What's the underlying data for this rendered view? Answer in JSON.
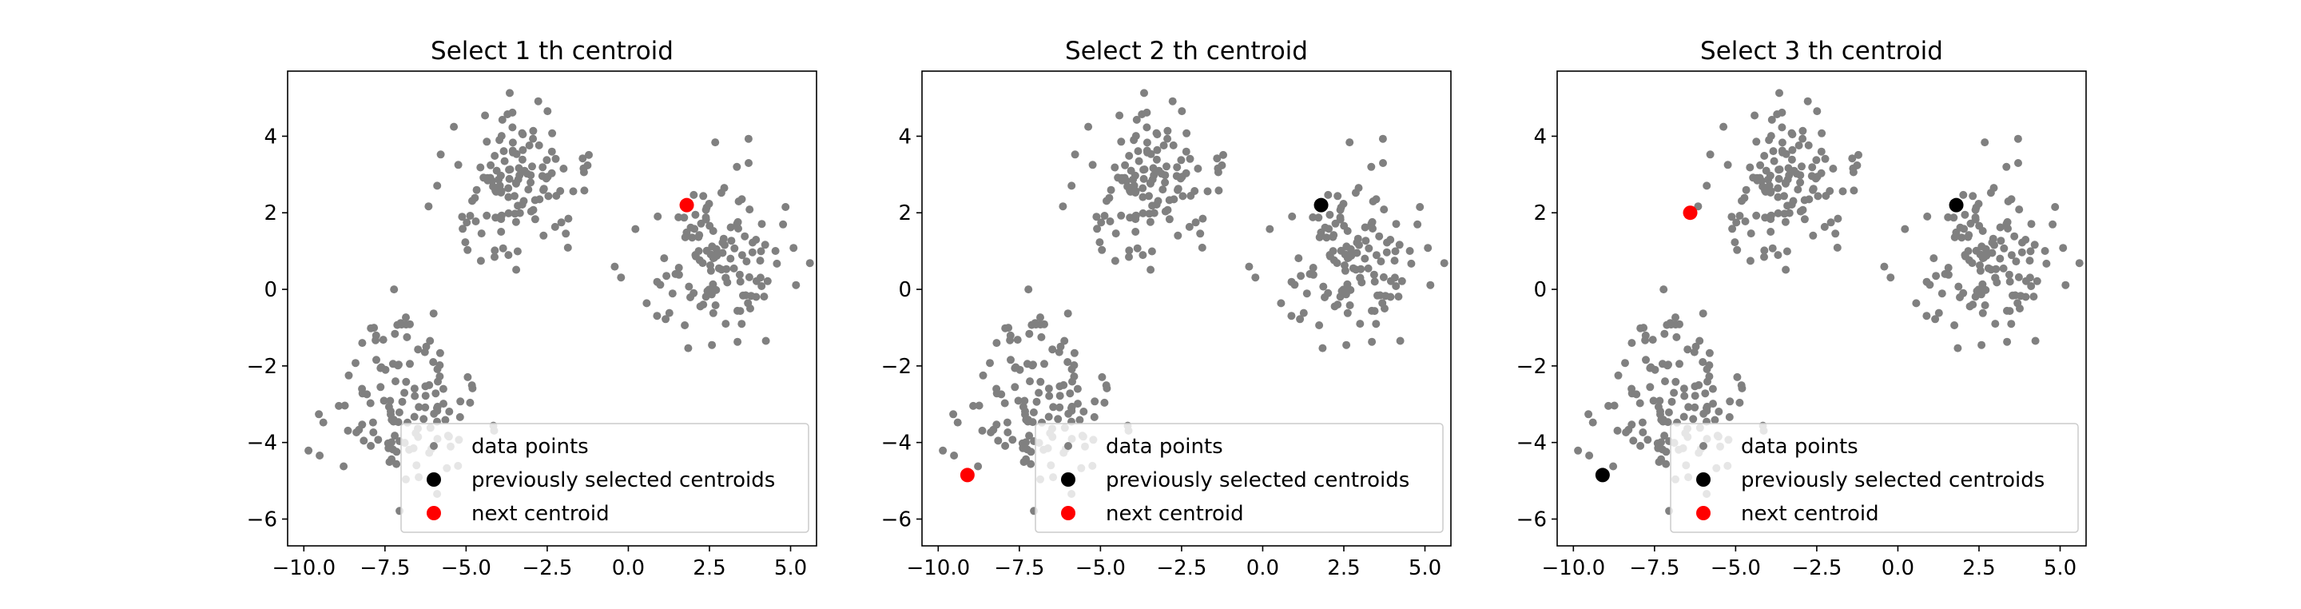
{
  "chart_data": [
    {
      "type": "scatter",
      "title": "Select  1 th centroid",
      "xlabel": "",
      "ylabel": "",
      "xlim": [
        -10.5,
        5.8
      ],
      "ylim": [
        -6.7,
        5.7
      ],
      "xticks": [
        -10.0,
        -7.5,
        -5.0,
        -2.5,
        0.0,
        2.5,
        5.0
      ],
      "yticks": [
        -6,
        -4,
        -2,
        0,
        2,
        4
      ],
      "xtick_labels": [
        "−10.0",
        "−7.5",
        "−5.0",
        "−2.5",
        "0.0",
        "2.5",
        "5.0"
      ],
      "ytick_labels": [
        "−6",
        "−4",
        "−2",
        "0",
        "2",
        "4"
      ],
      "grid": false,
      "legend": {
        "position": "lower right",
        "entries": [
          {
            "label": "data points",
            "color": "#808080"
          },
          {
            "label": "previously selected centroids",
            "color": "#000000"
          },
          {
            "label": "next centroid",
            "color": "#ff0000"
          }
        ]
      },
      "clusters": [
        {
          "center": [
            -3.6,
            2.6
          ],
          "spread": [
            1.1,
            1.05
          ],
          "count": 130
        },
        {
          "center": [
            -7.0,
            -3.0
          ],
          "spread": [
            1.1,
            1.1
          ],
          "count": 130
        },
        {
          "center": [
            2.8,
            0.9
          ],
          "spread": [
            1.05,
            1.0
          ],
          "count": 130
        }
      ],
      "previous_centroids": [],
      "next_centroid": [
        1.8,
        2.2
      ]
    },
    {
      "type": "scatter",
      "title": "Select  2 th centroid",
      "xlabel": "",
      "ylabel": "",
      "xlim": [
        -10.5,
        5.8
      ],
      "ylim": [
        -6.7,
        5.7
      ],
      "xticks": [
        -10.0,
        -7.5,
        -5.0,
        -2.5,
        0.0,
        2.5,
        5.0
      ],
      "yticks": [
        -6,
        -4,
        -2,
        0,
        2,
        4
      ],
      "xtick_labels": [
        "−10.0",
        "−7.5",
        "−5.0",
        "−2.5",
        "0.0",
        "2.5",
        "5.0"
      ],
      "ytick_labels": [
        "−6",
        "−4",
        "−2",
        "0",
        "2",
        "4"
      ],
      "grid": false,
      "legend": {
        "position": "lower right",
        "entries": [
          {
            "label": "data points",
            "color": "#808080"
          },
          {
            "label": "previously selected centroids",
            "color": "#000000"
          },
          {
            "label": "next centroid",
            "color": "#ff0000"
          }
        ]
      },
      "clusters": [
        {
          "center": [
            -3.6,
            2.6
          ],
          "spread": [
            1.1,
            1.05
          ],
          "count": 130
        },
        {
          "center": [
            -7.0,
            -3.0
          ],
          "spread": [
            1.1,
            1.1
          ],
          "count": 130
        },
        {
          "center": [
            2.8,
            0.9
          ],
          "spread": [
            1.05,
            1.0
          ],
          "count": 130
        }
      ],
      "previous_centroids": [
        [
          1.8,
          2.2
        ]
      ],
      "next_centroid": [
        -9.1,
        -4.85
      ]
    },
    {
      "type": "scatter",
      "title": "Select  3 th centroid",
      "xlabel": "",
      "ylabel": "",
      "xlim": [
        -10.5,
        5.8
      ],
      "ylim": [
        -6.7,
        5.7
      ],
      "xticks": [
        -10.0,
        -7.5,
        -5.0,
        -2.5,
        0.0,
        2.5,
        5.0
      ],
      "yticks": [
        -6,
        -4,
        -2,
        0,
        2,
        4
      ],
      "xtick_labels": [
        "−10.0",
        "−7.5",
        "−5.0",
        "−2.5",
        "0.0",
        "2.5",
        "5.0"
      ],
      "ytick_labels": [
        "−6",
        "−4",
        "−2",
        "0",
        "2",
        "4"
      ],
      "grid": false,
      "legend": {
        "position": "lower right",
        "entries": [
          {
            "label": "data points",
            "color": "#808080"
          },
          {
            "label": "previously selected centroids",
            "color": "#000000"
          },
          {
            "label": "next centroid",
            "color": "#ff0000"
          }
        ]
      },
      "clusters": [
        {
          "center": [
            -3.6,
            2.6
          ],
          "spread": [
            1.1,
            1.05
          ],
          "count": 130
        },
        {
          "center": [
            -7.0,
            -3.0
          ],
          "spread": [
            1.1,
            1.1
          ],
          "count": 130
        },
        {
          "center": [
            2.8,
            0.9
          ],
          "spread": [
            1.05,
            1.0
          ],
          "count": 130
        }
      ],
      "previous_centroids": [
        [
          1.8,
          2.2
        ],
        [
          -9.1,
          -4.85
        ]
      ],
      "next_centroid": [
        -6.4,
        2.0
      ]
    }
  ]
}
